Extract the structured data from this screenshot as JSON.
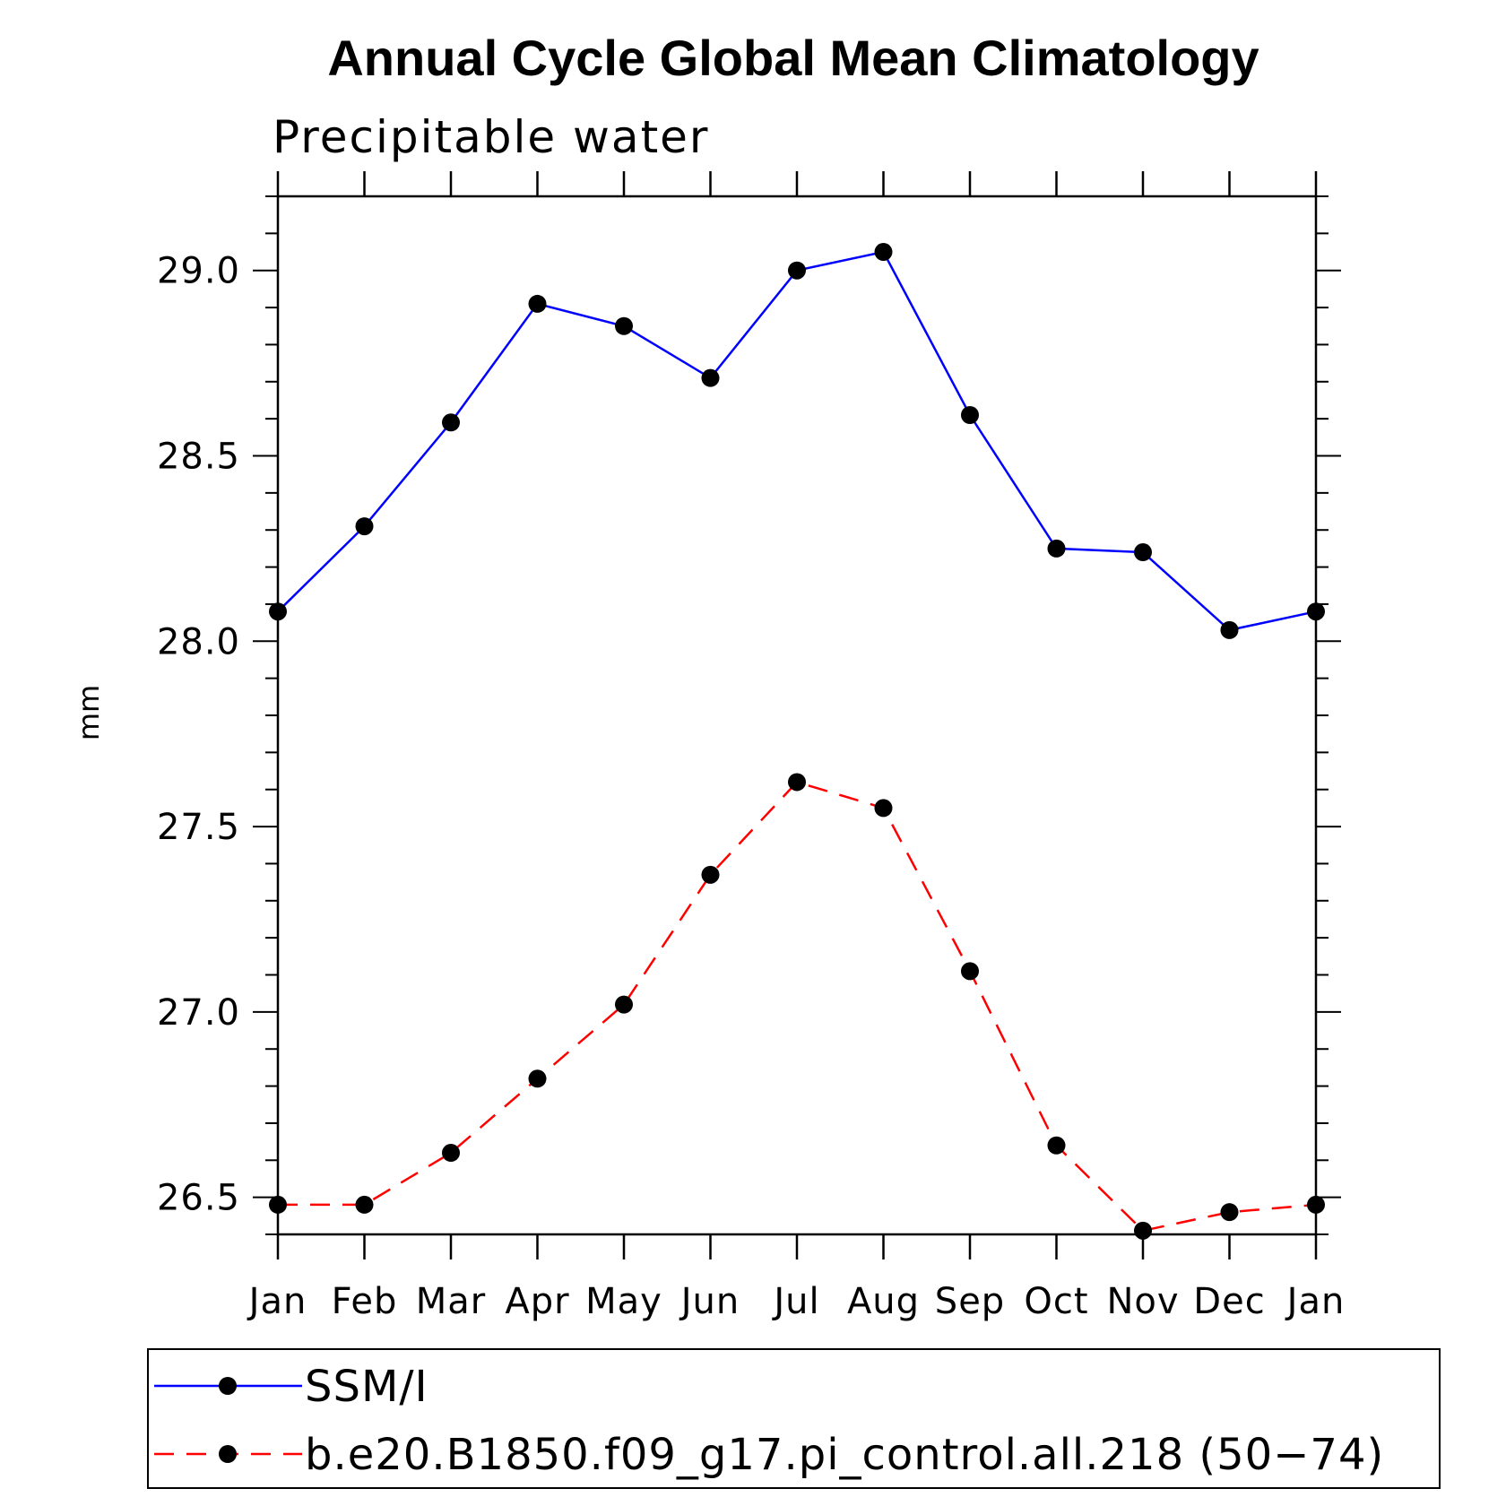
{
  "chart_data": {
    "type": "line",
    "title": "Annual Cycle Global Mean Climatology",
    "subtitle": "Precipitable water",
    "xlabel": "",
    "ylabel": "mm",
    "categories": [
      "Jan",
      "Feb",
      "Mar",
      "Apr",
      "May",
      "Jun",
      "Jul",
      "Aug",
      "Sep",
      "Oct",
      "Nov",
      "Dec",
      "Jan"
    ],
    "ylim": [
      26.4,
      29.2
    ],
    "yticks": [
      26.5,
      27.0,
      27.5,
      28.0,
      28.5,
      29.0
    ],
    "ytick_labels": [
      "26.5",
      "27.0",
      "27.5",
      "28.0",
      "28.5",
      "29.0"
    ],
    "grid": false,
    "legend_position": "bottom",
    "series": [
      {
        "name": "SSM/I",
        "color": "#0000ff",
        "line_style": "solid",
        "marker": "filled-circle",
        "values": [
          28.08,
          28.31,
          28.59,
          28.91,
          28.85,
          28.71,
          29.0,
          29.05,
          28.61,
          28.25,
          28.24,
          28.03,
          28.08
        ]
      },
      {
        "name": "b.e20.B1850.f09_g17.pi_control.all.218 (50−74)",
        "color": "#ff0000",
        "line_style": "dashed",
        "marker": "filled-circle",
        "values": [
          26.48,
          26.48,
          26.62,
          26.82,
          27.02,
          27.37,
          27.62,
          27.55,
          27.11,
          26.64,
          26.41,
          26.46,
          26.48
        ]
      }
    ]
  }
}
